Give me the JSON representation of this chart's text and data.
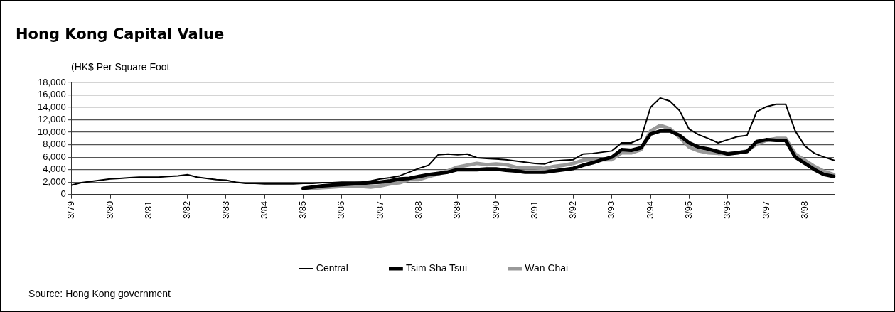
{
  "chart_data": {
    "type": "line",
    "title": "Hong Kong Capital Value",
    "ylabel": "(HK$ Per Square Foot",
    "categories": [
      "3/79",
      null,
      null,
      null,
      "3/80",
      null,
      null,
      null,
      "3/81",
      null,
      null,
      null,
      "3/82",
      null,
      null,
      null,
      "3/83",
      null,
      null,
      null,
      "3/84",
      null,
      null,
      null,
      "3/85",
      null,
      null,
      null,
      "3/86",
      null,
      null,
      null,
      "3/87",
      null,
      null,
      null,
      "3/88",
      null,
      null,
      null,
      "3/89",
      null,
      null,
      null,
      "3/90",
      null,
      null,
      null,
      "3/91",
      null,
      null,
      null,
      "3/92",
      null,
      null,
      null,
      "3/93",
      null,
      null,
      null,
      "3/94",
      null,
      null,
      null,
      "3/95",
      null,
      null,
      null,
      "3/96",
      null,
      null,
      null,
      "3/97",
      null,
      null,
      null,
      "3/98",
      null,
      null,
      null
    ],
    "series": [
      {
        "name": "Central",
        "color": "#000000",
        "values": [
          1500,
          1900,
          2100,
          2300,
          2500,
          2600,
          2700,
          2800,
          2800,
          2800,
          2900,
          3000,
          3200,
          2800,
          2600,
          2400,
          2300,
          2000,
          1800,
          1800,
          1700,
          1700,
          1700,
          1700,
          1800,
          1800,
          1900,
          1900,
          2000,
          2000,
          2000,
          2200,
          2500,
          2700,
          3000,
          3600,
          4200,
          4700,
          6400,
          6500,
          6400,
          6500,
          5900,
          5800,
          5700,
          5600,
          5400,
          5200,
          5000,
          4900,
          5400,
          5500,
          5600,
          6500,
          6600,
          6800,
          7000,
          8300,
          8300,
          9000,
          14000,
          15500,
          15000,
          13500,
          10500,
          9600,
          9000,
          8300,
          8800,
          9300,
          9500,
          13300,
          14100,
          14500,
          14500,
          10200,
          7800,
          6600,
          6000,
          5500
        ]
      },
      {
        "name": "Tsim Sha Tsui",
        "color": "#000000",
        "values": [
          null,
          null,
          null,
          null,
          null,
          null,
          null,
          null,
          null,
          null,
          null,
          null,
          null,
          null,
          null,
          null,
          null,
          null,
          null,
          null,
          null,
          null,
          null,
          null,
          1000,
          1200,
          1400,
          1500,
          1600,
          1700,
          1800,
          1900,
          2000,
          2200,
          2500,
          2600,
          2900,
          3200,
          3400,
          3600,
          4000,
          4000,
          4000,
          4100,
          4100,
          3900,
          3800,
          3600,
          3600,
          3600,
          3800,
          4000,
          4200,
          4700,
          5100,
          5600,
          6000,
          7200,
          7100,
          7500,
          9700,
          10200,
          10200,
          9500,
          8300,
          7600,
          7300,
          6900,
          6500,
          6700,
          6900,
          8500,
          8800,
          8700,
          8700,
          6000,
          5000,
          4000,
          3200,
          2900
        ]
      },
      {
        "name": "Wan Chai",
        "color": "#999999",
        "values": [
          null,
          null,
          null,
          null,
          null,
          null,
          null,
          null,
          null,
          null,
          null,
          null,
          null,
          null,
          null,
          null,
          null,
          null,
          null,
          null,
          null,
          null,
          null,
          null,
          1000,
          1000,
          1100,
          1200,
          1300,
          1300,
          1300,
          1200,
          1400,
          1700,
          1900,
          2400,
          2400,
          2900,
          3300,
          3800,
          4400,
          4700,
          5000,
          4800,
          4900,
          4800,
          4400,
          4300,
          4300,
          4200,
          4500,
          4700,
          5000,
          5500,
          5600,
          5600,
          5600,
          6700,
          6700,
          7200,
          10200,
          11100,
          10600,
          9200,
          7600,
          7000,
          6700,
          6600,
          6600,
          6700,
          7000,
          8100,
          8700,
          9000,
          9000,
          6500,
          5500,
          4500,
          3700,
          3200
        ]
      }
    ],
    "ylim": [
      0,
      18000
    ],
    "yticks": [
      0,
      {
        "value": 2000,
        "label": "2,000"
      },
      {
        "value": 4000,
        "label": "4,000"
      },
      {
        "value": 6000,
        "label": "6,000"
      },
      {
        "value": 8000,
        "label": "8,000"
      },
      {
        "value": 10000,
        "label": "10,000"
      },
      {
        "value": 12000,
        "label": "12,000"
      },
      {
        "value": 14000,
        "label": "14,000"
      },
      {
        "value": 16000,
        "label": "16,000"
      },
      {
        "value": 18000,
        "label": "18,000"
      }
    ],
    "grid": "y",
    "legend": "bottom",
    "marker": "none",
    "line_style": "solid",
    "annotations": [
      "Source: Hong Kong government"
    ]
  }
}
